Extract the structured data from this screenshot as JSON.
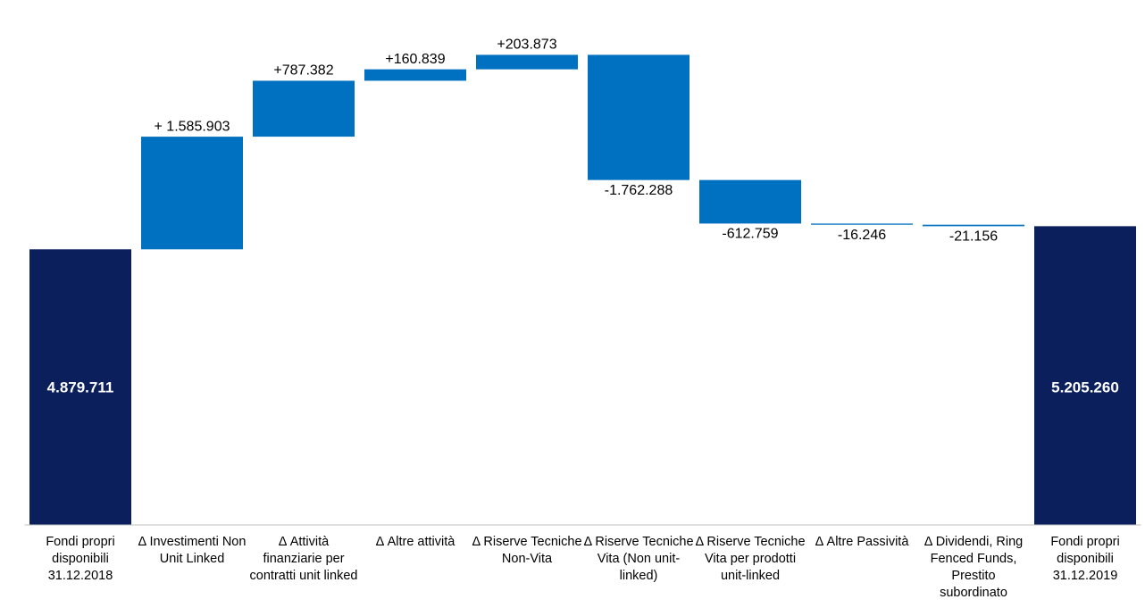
{
  "chart_data": {
    "type": "waterfall",
    "categories": [
      "Fondi propri disponibili 31.12.2018",
      "Δ Investimenti Non Unit Linked",
      "Δ Attività finanziarie per contratti unit linked",
      "Δ Altre attività",
      "Δ Riserve Tecniche Non-Vita",
      "Δ Riserve Tecniche Vita (Non unit-linked)",
      "Δ Riserve Tecniche Vita per prodotti unit-linked",
      "Δ Altre Passività",
      "Δ Dividendi, Ring Fenced Funds, Prestito subordinato",
      "Fondi propri disponibili 31.12.2019"
    ],
    "values": [
      4879711,
      1585903,
      787382,
      160839,
      203873,
      -1762288,
      -612759,
      -16246,
      -21156,
      5205260
    ],
    "value_labels": [
      "4.879.711",
      "+ 1.585.903",
      "+787.382",
      "+160.839",
      "+203.873",
      "-1.762.288",
      "-612.759",
      "-16.246",
      "-21.156",
      "5.205.260"
    ],
    "color": "#0070c0",
    "total_color": "#0a1f5c",
    "ylim": [
      1000000,
      8000000
    ]
  }
}
